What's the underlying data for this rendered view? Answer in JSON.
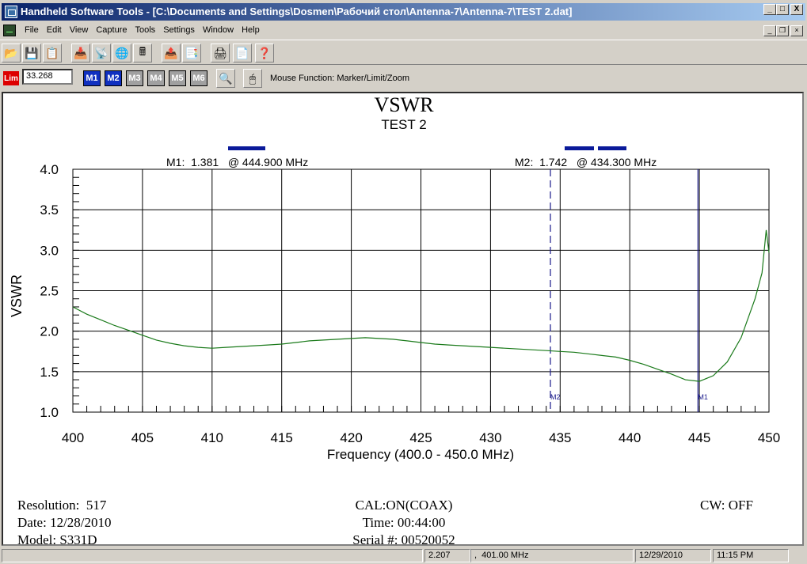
{
  "window": {
    "title": "Handheld Software Tools - [C:\\Documents and Settings\\Dosmen\\Рабочий стол\\Antenna-7\\Antenna-7\\TEST 2.dat]",
    "minimize": "_",
    "maximize": "□",
    "close": "X"
  },
  "menu": [
    "File",
    "Edit",
    "View",
    "Capture",
    "Tools",
    "Settings",
    "Window",
    "Help"
  ],
  "toolbar": {
    "icons": [
      "open-folder-icon",
      "save-icon",
      "copy-icon",
      "capture-icon",
      "antenna-icon",
      "globe-icon",
      "calculator-icon",
      "export-icon",
      "import-icon",
      "print-icon",
      "page-icon",
      "help-icon"
    ]
  },
  "toolbar2": {
    "lim_label": "Lim",
    "limit_value": "33.268",
    "markers": [
      {
        "label": "M1",
        "active": true
      },
      {
        "label": "M2",
        "active": true
      },
      {
        "label": "M3",
        "active": false
      },
      {
        "label": "M4",
        "active": false
      },
      {
        "label": "M5",
        "active": false
      },
      {
        "label": "M6",
        "active": false
      }
    ],
    "mouse_function": "Mouse Function: Marker/Limit/Zoom"
  },
  "chart_data": {
    "type": "line",
    "title": "VSWR",
    "subtitle": "TEST 2",
    "xlabel": "Frequency (400.0 - 450.0 MHz)",
    "ylabel": "VSWR",
    "xlim": [
      400,
      450
    ],
    "ylim": [
      1.0,
      4.0
    ],
    "xticks": [
      "400",
      "405",
      "410",
      "415",
      "420",
      "425",
      "430",
      "435",
      "440",
      "445",
      "450"
    ],
    "yticks": [
      "1.0",
      "1.5",
      "2.0",
      "2.5",
      "3.0",
      "3.5",
      "4.0"
    ],
    "grid": true,
    "line_color": "#1a7a1a",
    "series": [
      {
        "x": [
          400,
          401,
          402,
          403,
          404,
          405,
          406,
          407,
          408,
          409,
          410,
          411,
          412,
          413,
          414,
          415,
          416,
          417,
          418,
          419,
          420,
          421,
          422,
          423,
          424,
          425,
          426,
          427,
          428,
          429,
          430,
          431,
          432,
          433,
          434,
          435,
          436,
          437,
          438,
          439,
          440,
          441,
          442,
          443,
          444,
          445,
          446,
          447,
          448,
          449,
          449.5,
          449.8,
          450
        ],
        "y": [
          2.3,
          2.21,
          2.14,
          2.07,
          2.01,
          1.95,
          1.89,
          1.85,
          1.82,
          1.8,
          1.79,
          1.8,
          1.81,
          1.82,
          1.83,
          1.84,
          1.86,
          1.88,
          1.89,
          1.9,
          1.91,
          1.92,
          1.91,
          1.9,
          1.88,
          1.86,
          1.84,
          1.83,
          1.82,
          1.81,
          1.8,
          1.79,
          1.78,
          1.77,
          1.76,
          1.75,
          1.74,
          1.72,
          1.7,
          1.68,
          1.64,
          1.59,
          1.53,
          1.47,
          1.4,
          1.38,
          1.45,
          1.62,
          1.92,
          2.4,
          2.72,
          3.25,
          2.97
        ]
      }
    ],
    "markers": [
      {
        "name": "M1",
        "label": "M1:  1.381   @ 444.900 MHz",
        "x": 444.9,
        "style": "solid",
        "tag": "M1"
      },
      {
        "name": "M2",
        "label": "M2:  1.742   @ 434.300 MHz",
        "x": 434.3,
        "style": "dashed",
        "tag": "M2"
      }
    ]
  },
  "footer": {
    "resolution": "Resolution:  517",
    "date": "Date: 12/28/2010",
    "model": "Model: S331D",
    "cal": "CAL:ON(COAX)",
    "time": "Time: 00:44:00",
    "serial": "Serial #: 00520052",
    "cw": "CW: OFF"
  },
  "status": {
    "value": "2.207",
    "freq": ",  401.00 MHz",
    "date": "12/29/2010",
    "time": "11:15 PM"
  },
  "colors": {
    "title_bar_start": "#0a246a",
    "title_bar_end": "#a6caf0",
    "marker_bar": "#0a1a9a",
    "trace": "#1a7a1a",
    "marker_line": "#1a1a8a"
  }
}
